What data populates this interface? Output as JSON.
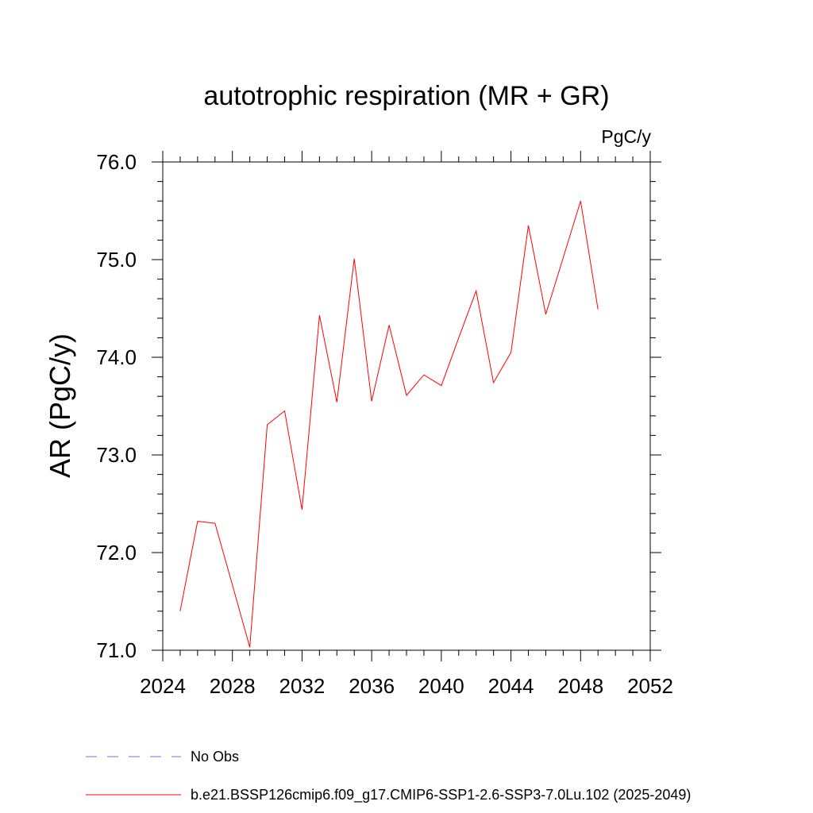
{
  "chart_data": {
    "type": "line",
    "title": "autotrophic respiration (MR + GR)",
    "units_label": "PgC/y",
    "ylabel": "AR  (PgC/y)",
    "xlabel": "",
    "xlim": [
      2024,
      2052
    ],
    "ylim": [
      71.0,
      76.0
    ],
    "x_ticks": [
      2024,
      2028,
      2032,
      2036,
      2040,
      2044,
      2048,
      2052
    ],
    "y_ticks": [
      71.0,
      72.0,
      73.0,
      74.0,
      75.0,
      76.0
    ],
    "x_tick_labels": [
      "2024",
      "2028",
      "2032",
      "2036",
      "2040",
      "2044",
      "2048",
      "2052"
    ],
    "y_tick_labels": [
      "71.0",
      "72.0",
      "73.0",
      "74.0",
      "75.0",
      "76.0"
    ],
    "grid": false,
    "legend_placement": "bottom",
    "series": [
      {
        "name": "b.e21.BSSP126cmip6.f09_g17.CMIP6-SSP1-2.6-SSP3-7.0Lu.102 (2025-2049)",
        "color": "#ff0000",
        "style": "solid",
        "x": [
          2025,
          2026,
          2027,
          2028,
          2029,
          2030,
          2031,
          2032,
          2033,
          2034,
          2035,
          2036,
          2037,
          2038,
          2039,
          2040,
          2041,
          2042,
          2043,
          2044,
          2045,
          2046,
          2047,
          2048,
          2049
        ],
        "y": [
          71.4,
          72.32,
          72.3,
          71.67,
          71.03,
          73.31,
          73.45,
          72.44,
          74.43,
          73.54,
          75.01,
          73.55,
          74.33,
          73.61,
          73.82,
          73.71,
          74.2,
          74.68,
          73.74,
          74.05,
          75.35,
          74.44,
          75.02,
          75.6,
          74.49
        ]
      }
    ],
    "legend": [
      {
        "label": "No Obs",
        "color": "#7b68ee",
        "style": "dashed"
      },
      {
        "label": "b.e21.BSSP126cmip6.f09_g17.CMIP6-SSP1-2.6-SSP3-7.0Lu.102 (2025-2049)",
        "color": "#ff0000",
        "style": "solid"
      }
    ]
  }
}
